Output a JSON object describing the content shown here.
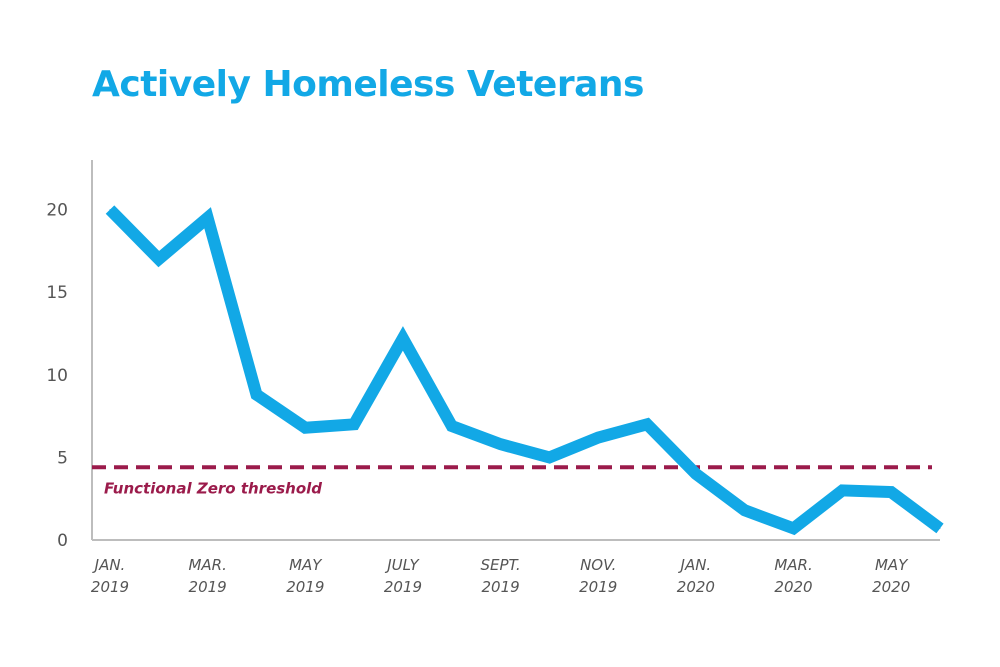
{
  "chart_data": {
    "type": "line",
    "title": "Actively Homeless Veterans",
    "xlabel": "",
    "ylabel": "",
    "ylim": [
      0,
      23
    ],
    "x_ticks": [
      {
        "index": 0,
        "label1": "JAN.",
        "label2": "2019"
      },
      {
        "index": 2,
        "label1": "MAR.",
        "label2": "2019"
      },
      {
        "index": 4,
        "label1": "MAY",
        "label2": "2019"
      },
      {
        "index": 6,
        "label1": "JULY",
        "label2": "2019"
      },
      {
        "index": 8,
        "label1": "SEPT.",
        "label2": "2019"
      },
      {
        "index": 10,
        "label1": "NOV.",
        "label2": "2019"
      },
      {
        "index": 12,
        "label1": "JAN.",
        "label2": "2020"
      },
      {
        "index": 14,
        "label1": "MAR.",
        "label2": "2020"
      },
      {
        "index": 16,
        "label1": "MAY",
        "label2": "2020"
      }
    ],
    "y_ticks": [
      0,
      5,
      10,
      15,
      20
    ],
    "series": [
      {
        "values": [
          20,
          17,
          19.5,
          8.8,
          6.8,
          7,
          12.2,
          6.9,
          5.8,
          5,
          6.2,
          7,
          4,
          1.8,
          0.7,
          3,
          2.9,
          0.7
        ]
      }
    ],
    "threshold": {
      "value": 4.4,
      "label": "Functional Zero threshold",
      "color": "#9b1b4b"
    },
    "line_color": "#12a8e6",
    "axis_color": "#bdbdbd",
    "grid": false
  }
}
